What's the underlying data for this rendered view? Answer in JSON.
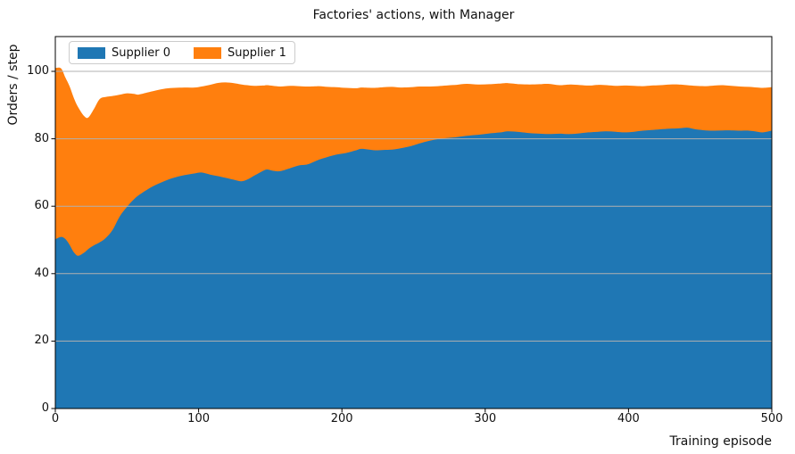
{
  "title": "Factories' actions, with Manager",
  "axes": {
    "xlabel": "Training episode",
    "ylabel": "Orders / step",
    "x_ticks": [
      0,
      100,
      200,
      300,
      400,
      500
    ],
    "y_ticks": [
      0,
      20,
      40,
      60,
      80,
      100
    ],
    "xlim": [
      0,
      500
    ],
    "ylim": [
      0,
      110.6
    ],
    "grid": "horizontal"
  },
  "legend": {
    "position": "upper-left",
    "items": [
      {
        "label": "Supplier 0",
        "color": "#1f77b4"
      },
      {
        "label": "Supplier 1",
        "color": "#ff7f0e"
      }
    ]
  },
  "colors": {
    "supplier0": "#1f77b4",
    "supplier1": "#ff7f0e",
    "grid": "#b0b0b0",
    "spine": "#000000",
    "background": "#ffffff"
  },
  "chart_data": {
    "type": "area",
    "stacked": true,
    "title": "Factories' actions, with Manager",
    "xlabel": "Training episode",
    "ylabel": "Orders / step",
    "xlim": [
      0,
      500
    ],
    "ylim": [
      0,
      110.6
    ],
    "legend_position": "upper-left",
    "x": [
      0,
      4,
      7,
      10,
      13,
      16,
      20,
      23,
      27,
      31,
      35,
      40,
      45,
      50,
      55,
      58,
      64,
      70,
      77,
      83,
      90,
      97,
      102,
      108,
      114,
      120,
      126,
      130,
      134,
      139,
      145,
      148,
      152,
      157,
      164,
      170,
      176,
      184,
      190,
      196,
      203,
      210,
      214,
      223,
      229,
      235,
      241,
      248,
      254,
      260,
      267,
      273,
      280,
      287,
      295,
      303,
      311,
      316,
      324,
      331,
      338,
      344,
      352,
      360,
      372,
      379,
      385,
      391,
      397,
      404,
      410,
      416,
      422,
      429,
      435,
      441,
      447,
      454,
      460,
      466,
      472,
      478,
      484,
      490,
      494,
      500
    ],
    "series": [
      {
        "name": "Supplier 0",
        "color": "#1f77b4",
        "values": [
          50.2,
          50.9,
          50.3,
          48.5,
          46.3,
          45.3,
          46.2,
          47.3,
          48.4,
          49.3,
          50.5,
          53.0,
          57.0,
          59.8,
          62.1,
          63.2,
          64.9,
          66.3,
          67.6,
          68.5,
          69.2,
          69.7,
          70.0,
          69.4,
          68.9,
          68.3,
          67.7,
          67.4,
          67.9,
          69.1,
          70.5,
          70.9,
          70.5,
          70.4,
          71.3,
          72.1,
          72.4,
          73.8,
          74.6,
          75.3,
          75.8,
          76.6,
          77.0,
          76.6,
          76.7,
          76.8,
          77.2,
          77.8,
          78.6,
          79.3,
          79.9,
          80.2,
          80.5,
          80.9,
          81.2,
          81.6,
          81.9,
          82.2,
          82.0,
          81.7,
          81.5,
          81.4,
          81.5,
          81.4,
          81.9,
          82.1,
          82.2,
          82.1,
          81.9,
          82.1,
          82.4,
          82.6,
          82.8,
          83.0,
          83.1,
          83.3,
          82.8,
          82.5,
          82.4,
          82.5,
          82.5,
          82.4,
          82.4,
          82.1,
          81.9,
          82.4
        ]
      },
      {
        "name": "Supplier 1",
        "color": "#ff7f0e",
        "values": [
          50.8,
          50.0,
          47.9,
          47.0,
          45.7,
          44.0,
          40.6,
          39.0,
          40.5,
          42.5,
          41.9,
          39.7,
          36.1,
          33.7,
          31.2,
          29.9,
          28.8,
          28.0,
          27.3,
          26.6,
          26.0,
          25.5,
          25.5,
          26.6,
          27.7,
          28.4,
          28.7,
          28.7,
          28.0,
          26.6,
          25.3,
          25.0,
          25.2,
          25.1,
          24.4,
          23.5,
          23.1,
          21.8,
          20.8,
          20.0,
          19.3,
          18.4,
          18.2,
          18.5,
          18.6,
          18.6,
          18.0,
          17.5,
          16.9,
          16.2,
          15.7,
          15.6,
          15.5,
          15.4,
          14.9,
          14.6,
          14.5,
          14.3,
          14.2,
          14.4,
          14.7,
          14.9,
          14.4,
          14.7,
          13.9,
          13.9,
          13.7,
          13.6,
          13.9,
          13.6,
          13.2,
          13.2,
          13.1,
          13.1,
          13.0,
          12.6,
          12.9,
          13.1,
          13.4,
          13.4,
          13.2,
          13.1,
          13.0,
          13.1,
          13.2,
          12.9
        ]
      }
    ]
  }
}
